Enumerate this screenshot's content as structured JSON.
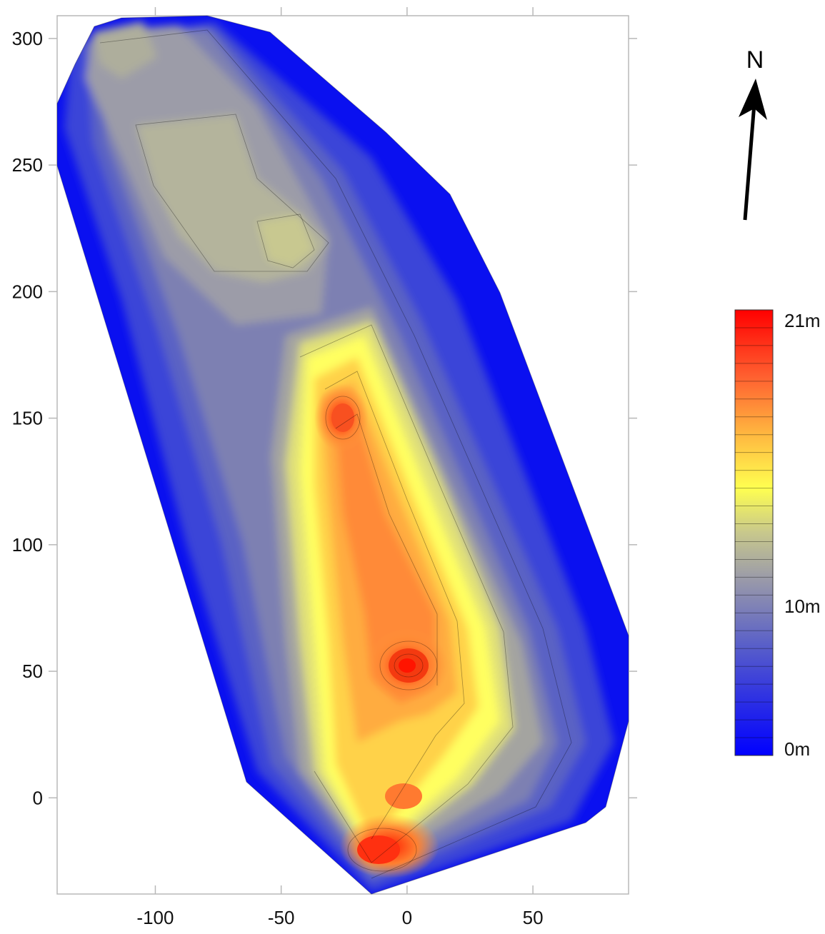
{
  "map": {
    "north_label": "N",
    "x_ticks": [
      "-100",
      "-50",
      "0",
      "50"
    ],
    "y_ticks": [
      "300",
      "250",
      "200",
      "150",
      "100",
      "50",
      "0"
    ],
    "x_tick_values": [
      -100,
      -50,
      0,
      50
    ],
    "y_tick_values": [
      300,
      250,
      200,
      150,
      100,
      50,
      0
    ],
    "x_range": [
      -139,
      88
    ],
    "y_range": [
      -38,
      309
    ],
    "north_arrow_rotation_deg": 6
  },
  "legend": {
    "labels": {
      "top": "21m",
      "mid": "10m",
      "bottom": "0m"
    },
    "value_range": [
      0,
      21
    ],
    "colors": {
      "low": "#0000ff",
      "midlow": "#9c9ca8",
      "mid": "#ffff50",
      "high": "#ff0000"
    }
  },
  "chart_data": {
    "type": "heatmap",
    "title": "",
    "xlabel": "",
    "ylabel": "",
    "xlim": [
      -139,
      88
    ],
    "ylim": [
      -38,
      309
    ],
    "colorbar": {
      "min": 0,
      "max": 21,
      "ticks": [
        "0m",
        "10m",
        "21m"
      ]
    },
    "grid": false,
    "legend_position": "right",
    "peaks": [
      {
        "x": 0,
        "y": 50,
        "value": 20
      },
      {
        "x": -10,
        "y": -22,
        "value": 19
      },
      {
        "x": -25,
        "y": 150,
        "value": 18
      },
      {
        "x": -40,
        "y": 220,
        "value": 8
      },
      {
        "x": -78,
        "y": 262,
        "value": 7
      }
    ]
  }
}
